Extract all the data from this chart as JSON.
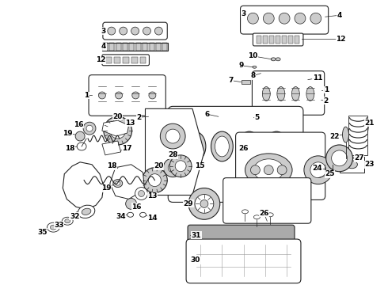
{
  "background_color": "#ffffff",
  "line_color": "#222222",
  "label_color": "#000000",
  "fig_width": 4.9,
  "fig_height": 3.6,
  "dpi": 100
}
